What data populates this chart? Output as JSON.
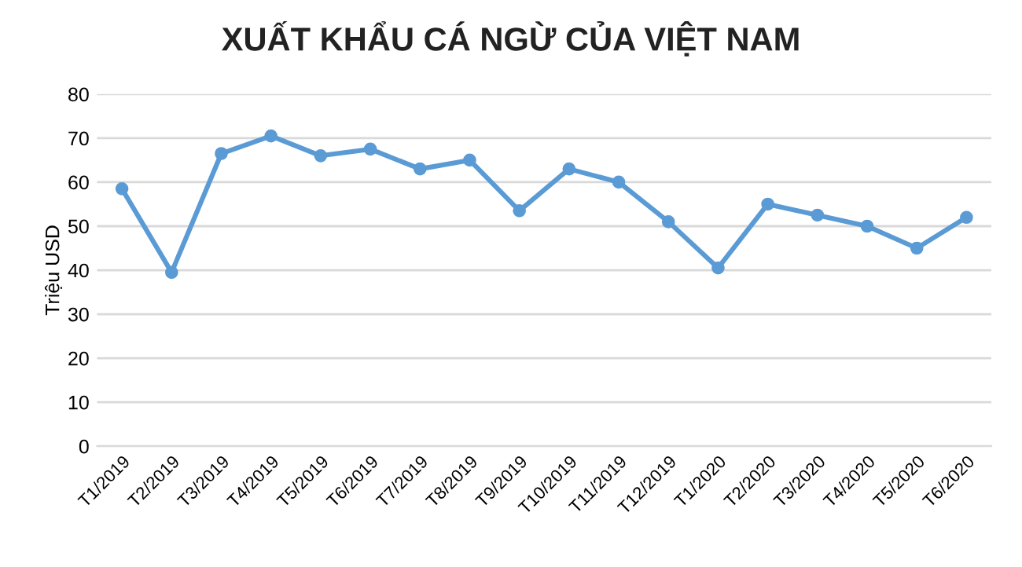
{
  "chart_data": {
    "type": "line",
    "title": "XUẤT KHẨU CÁ NGỪ CỦA VIỆT NAM",
    "ylabel": "Triệu USD",
    "categories": [
      "T1/2019",
      "T2/2019",
      "T3/2019",
      "T4/2019",
      "T5/2019",
      "T6/2019",
      "T7/2019",
      "T8/2019",
      "T9/2019",
      "T10/2019",
      "T11/2019",
      "T12/2019",
      "T1/2020",
      "T2/2020",
      "T3/2020",
      "T4/2020",
      "T5/2020",
      "T6/2020"
    ],
    "series": [
      {
        "color": "#5b9bd5",
        "values": [
          58.5,
          39.5,
          66.5,
          70.5,
          66,
          67.5,
          63,
          65,
          53.5,
          63,
          60,
          51,
          40.5,
          55,
          52.5,
          50,
          45,
          52
        ]
      }
    ],
    "ylim": [
      0,
      80
    ],
    "yticks": [
      0,
      10,
      20,
      30,
      40,
      50,
      60,
      70,
      80
    ],
    "grid": "y",
    "marker": "circle",
    "line_style": "solid"
  }
}
